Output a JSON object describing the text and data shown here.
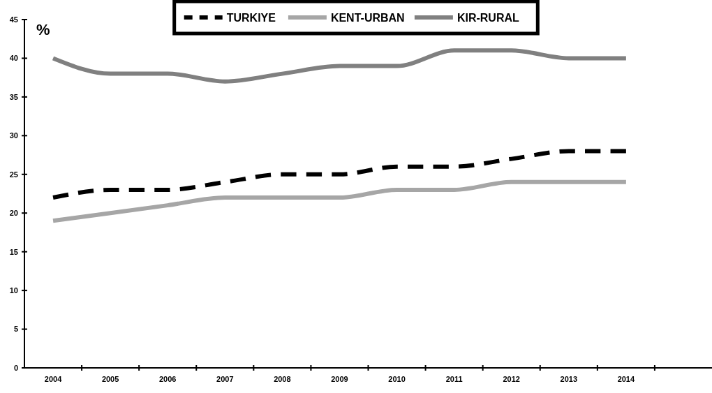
{
  "chart_data": {
    "type": "line",
    "ylabel": "%",
    "categories": [
      "2004",
      "2005",
      "2006",
      "2007",
      "2008",
      "2009",
      "2010",
      "2011",
      "2012",
      "2013",
      "2014",
      null
    ],
    "series": [
      {
        "name": "TURKIYE",
        "color": "#000000",
        "line_style": "dashed",
        "values": [
          22,
          23,
          23,
          24,
          25,
          25,
          26,
          26,
          27,
          28,
          28,
          null
        ]
      },
      {
        "name": "KENT-URBAN",
        "color": "#a6a6a6",
        "line_style": "solid",
        "values": [
          19,
          20,
          21,
          22,
          22,
          22,
          23,
          23,
          24,
          24,
          24,
          null
        ]
      },
      {
        "name": "KIR-RURAL",
        "color": "#808080",
        "line_style": "solid",
        "values": [
          40,
          38,
          38,
          37,
          38,
          39,
          39,
          41,
          41,
          40,
          40,
          null
        ]
      }
    ],
    "ylim": [
      0,
      45
    ],
    "yticks": [
      0,
      5,
      10,
      15,
      20,
      25,
      30,
      35,
      40,
      45
    ],
    "grid": false,
    "legend": "top",
    "marker": "none"
  }
}
